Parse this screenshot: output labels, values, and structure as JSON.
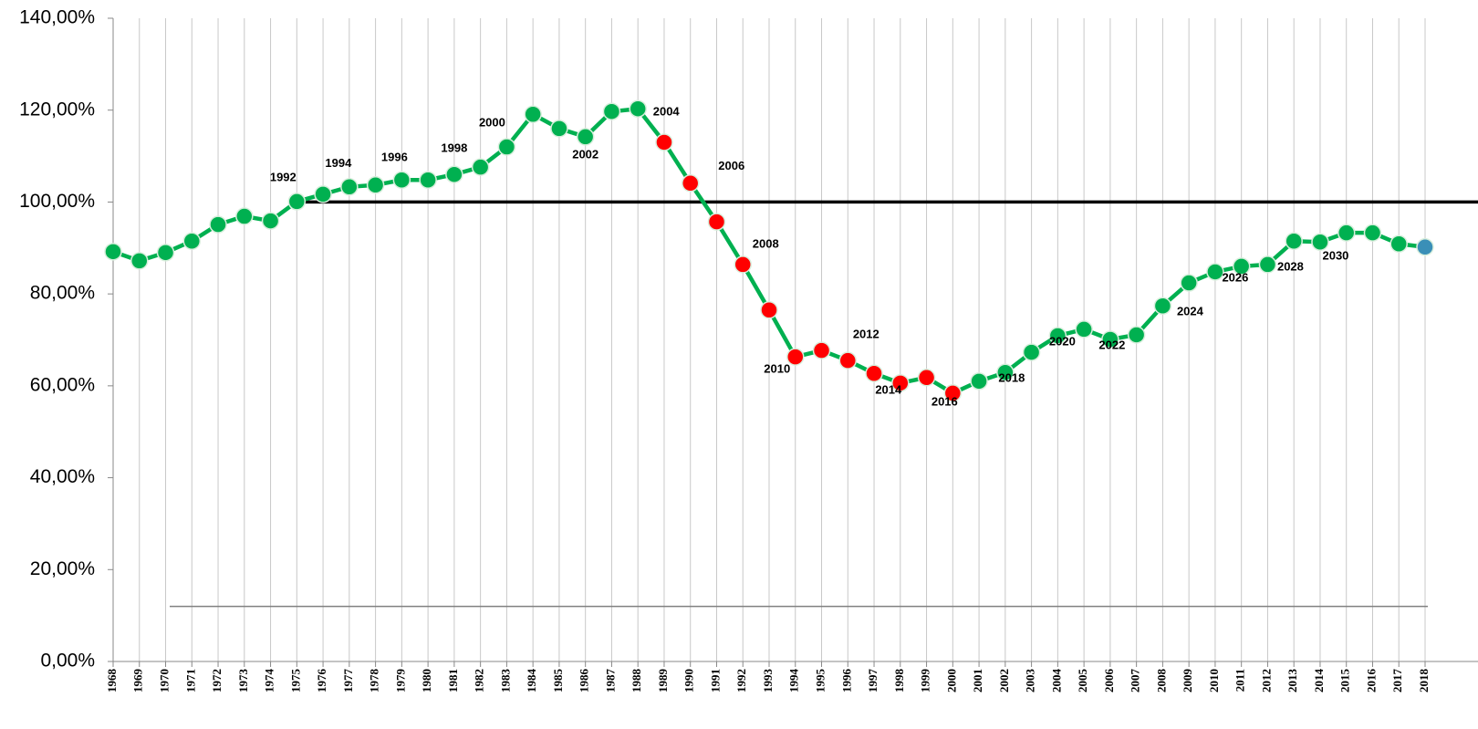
{
  "chart_data": {
    "type": "line",
    "categories": [
      "1968",
      "1969",
      "1970",
      "1971",
      "1972",
      "1973",
      "1974",
      "1975",
      "1976",
      "1977",
      "1978",
      "1979",
      "1980",
      "1981",
      "1982",
      "1983",
      "1984",
      "1985",
      "1986",
      "1987",
      "1988",
      "1989",
      "1990",
      "1991",
      "1992",
      "1993",
      "1994",
      "1995",
      "1996",
      "1997",
      "1998",
      "1999",
      "2000",
      "2001",
      "2002",
      "2003",
      "2004",
      "2005",
      "2006",
      "2007",
      "2008",
      "2009",
      "2010",
      "2011",
      "2012",
      "2013",
      "2014",
      "2015",
      "2016",
      "2017",
      "2018"
    ],
    "series": [
      {
        "color": "#00b050",
        "values": [
          89.2,
          87.2,
          89.0,
          91.5,
          95.1,
          96.9,
          95.9,
          100.1,
          101.7,
          103.3,
          103.7,
          104.8,
          104.8,
          106.0,
          107.6,
          112.0,
          119.1,
          116.0,
          114.2,
          119.7,
          120.3,
          113.0,
          104.1,
          95.7,
          86.4,
          76.5,
          66.3,
          67.7,
          65.5,
          62.7,
          60.6,
          61.8,
          58.4,
          61.0,
          62.9,
          67.3,
          70.9,
          72.3,
          70.1,
          71.1,
          77.4,
          82.4,
          84.8,
          86.0,
          86.4,
          91.5,
          91.3,
          93.3,
          93.3,
          90.9,
          90.2
        ],
        "point_colors": [
          "#00b050",
          "#00b050",
          "#00b050",
          "#00b050",
          "#00b050",
          "#00b050",
          "#00b050",
          "#00b050",
          "#00b050",
          "#00b050",
          "#00b050",
          "#00b050",
          "#00b050",
          "#00b050",
          "#00b050",
          "#00b050",
          "#00b050",
          "#00b050",
          "#00b050",
          "#00b050",
          "#00b050",
          "#ff0000",
          "#ff0000",
          "#ff0000",
          "#ff0000",
          "#ff0000",
          "#ff0000",
          "#ff0000",
          "#ff0000",
          "#ff0000",
          "#ff0000",
          "#ff0000",
          "#ff0000",
          "#00b050",
          "#00b050",
          "#00b050",
          "#00b050",
          "#00b050",
          "#00b050",
          "#00b050",
          "#00b050",
          "#00b050",
          "#00b050",
          "#00b050",
          "#00b050",
          "#00b050",
          "#00b050",
          "#00b050",
          "#00b050",
          "#00b050",
          "#3a8fb7"
        ],
        "annotations": [
          null,
          null,
          null,
          null,
          null,
          null,
          null,
          "1992",
          null,
          "1994",
          null,
          "1996",
          null,
          "1998",
          null,
          "2000",
          null,
          null,
          "2002",
          null,
          "2004",
          null,
          "2006",
          null,
          "2008",
          null,
          "2010",
          null,
          "2012",
          null,
          "2014",
          null,
          "2016",
          null,
          "2018",
          null,
          "2020",
          null,
          "2022",
          null,
          "2024",
          null,
          "2026",
          null,
          "2028",
          null,
          "2030",
          null,
          null,
          null,
          null
        ]
      }
    ],
    "ylim": [
      0,
      140
    ],
    "yticks": [
      {
        "value": 0,
        "label": "0,00%"
      },
      {
        "value": 20,
        "label": "20,00%"
      },
      {
        "value": 40,
        "label": "40,00%"
      },
      {
        "value": 60,
        "label": "60,00%"
      },
      {
        "value": 80,
        "label": "80,00%"
      },
      {
        "value": 100,
        "label": "100,00%"
      },
      {
        "value": 120,
        "label": "120,00%"
      },
      {
        "value": 140,
        "label": "140,00%"
      }
    ],
    "reference_lines": [
      {
        "value": 100,
        "color": "#000000"
      },
      {
        "value": 12,
        "color": "#808080"
      }
    ],
    "grid": true
  }
}
